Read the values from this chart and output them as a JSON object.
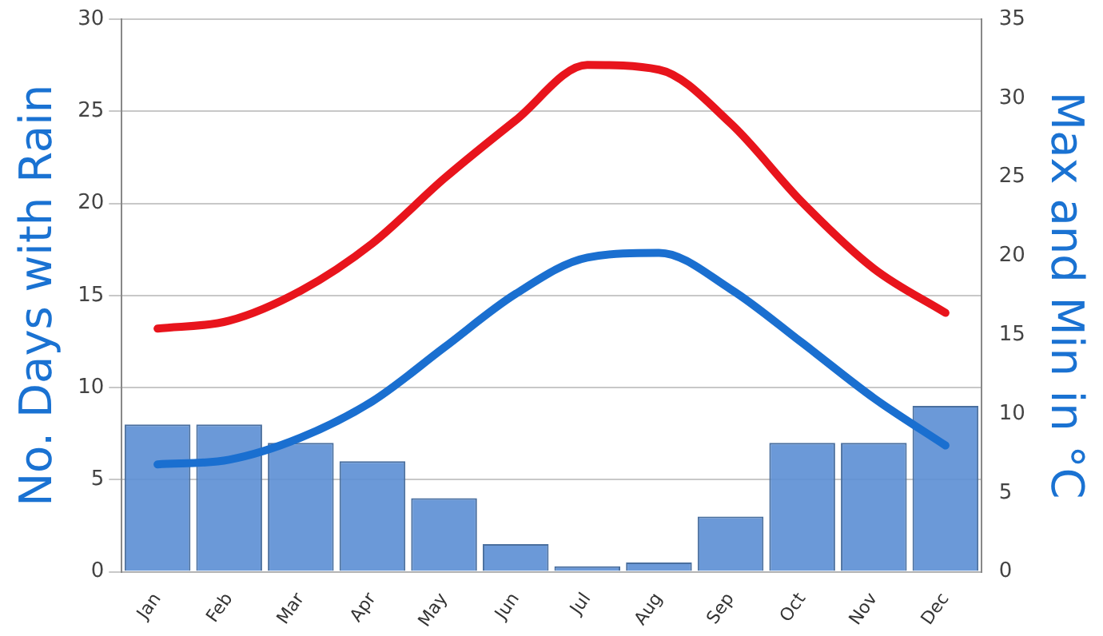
{
  "chart_data": {
    "type": "bar",
    "categories": [
      "Jan",
      "Feb",
      "Mar",
      "Apr",
      "May",
      "Jun",
      "Jul",
      "Aug",
      "Sep",
      "Oct",
      "Nov",
      "Dec"
    ],
    "ylabel": "No. Days with Rain",
    "y2label": "Max and Min in °C",
    "series": [
      {
        "color": "#5b8ed4",
        "values": [
          8,
          8,
          7,
          6,
          4,
          1.5,
          0.3,
          0.5,
          3,
          7,
          7,
          9
        ]
      },
      {
        "type": "line",
        "axis": "y2",
        "color": "#e8141c",
        "values": [
          15.4,
          15.9,
          17.8,
          20.8,
          24.9,
          28.6,
          32.1,
          31.8,
          28.4,
          23.4,
          19.2,
          16.4
        ]
      },
      {
        "type": "line",
        "axis": "y2",
        "color": "#1a6fd0",
        "values": [
          6.8,
          7.1,
          8.5,
          10.8,
          14.2,
          17.6,
          19.9,
          20.2,
          17.9,
          14.5,
          11,
          8
        ]
      }
    ],
    "ylim": [
      0,
      30
    ],
    "yticks": [
      0,
      5,
      10,
      15,
      20,
      25,
      30
    ],
    "y2lim": [
      0,
      35
    ],
    "y2ticks": [
      0,
      5,
      10,
      15,
      20,
      25,
      30,
      35
    ],
    "grid": "y",
    "legend": false,
    "marker": "none",
    "line_style": "solid"
  }
}
